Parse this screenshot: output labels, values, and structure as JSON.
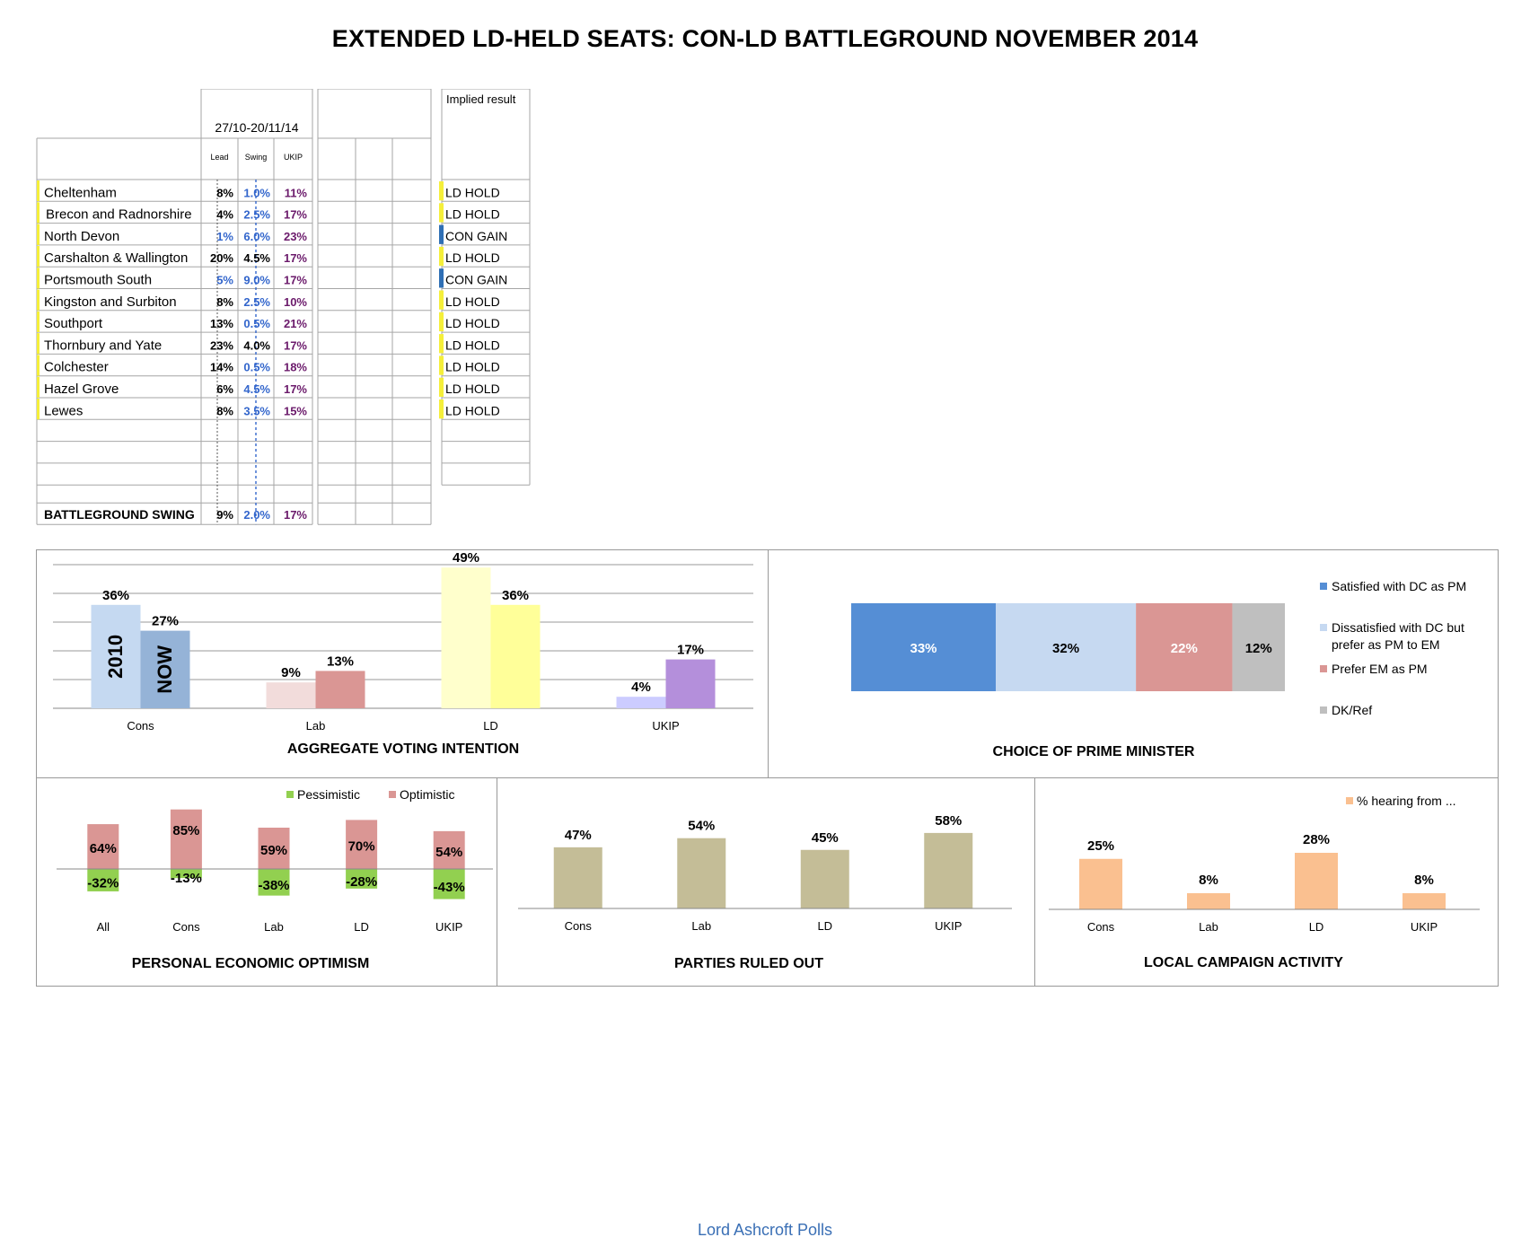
{
  "title": "EXTENDED LD-HELD SEATS: CON-LD BATTLEGROUND NOVEMBER 2014",
  "table": {
    "period": "27/10-20/11/14",
    "headers": {
      "lead": "Lead",
      "swing": "Swing",
      "ukip": "UKIP"
    },
    "implied_header": "Implied result",
    "rows": [
      {
        "seat": "Cheltenham",
        "lead": "8%",
        "swing": "1.0%",
        "ukip": "11%",
        "result": "LD HOLD",
        "lead_color": "#000000",
        "swing_color": "#3366cc",
        "marker": "#f5ef3a",
        "result_marker": "#f5ef3a"
      },
      {
        "seat": "Brecon and Radnorshire",
        "lead": "4%",
        "swing": "2.5%",
        "ukip": "17%",
        "result": "LD HOLD",
        "lead_color": "#000000",
        "swing_color": "#3366cc",
        "marker": "#f5ef3a",
        "result_marker": "#f5ef3a"
      },
      {
        "seat": "North Devon",
        "lead": "1%",
        "swing": "6.0%",
        "ukip": "23%",
        "result": "CON GAIN",
        "lead_color": "#3366cc",
        "swing_color": "#3366cc",
        "marker": "#f5ef3a",
        "result_marker": "#2f6fb5"
      },
      {
        "seat": "Carshalton & Wallington",
        "lead": "20%",
        "swing": "4.5%",
        "ukip": "17%",
        "result": "LD HOLD",
        "lead_color": "#000000",
        "swing_color": "#000000",
        "marker": "#f5ef3a",
        "result_marker": "#f5ef3a"
      },
      {
        "seat": "Portsmouth South",
        "lead": "5%",
        "swing": "9.0%",
        "ukip": "17%",
        "result": "CON GAIN",
        "lead_color": "#3366cc",
        "swing_color": "#3366cc",
        "marker": "#f5ef3a",
        "result_marker": "#2f6fb5"
      },
      {
        "seat": "Kingston and Surbiton",
        "lead": "8%",
        "swing": "2.5%",
        "ukip": "10%",
        "result": "LD HOLD",
        "lead_color": "#000000",
        "swing_color": "#3366cc",
        "marker": "#f5ef3a",
        "result_marker": "#f5ef3a"
      },
      {
        "seat": "Southport",
        "lead": "13%",
        "swing": "0.5%",
        "ukip": "21%",
        "result": "LD HOLD",
        "lead_color": "#000000",
        "swing_color": "#3366cc",
        "marker": "#f5ef3a",
        "result_marker": "#f5ef3a"
      },
      {
        "seat": "Thornbury and Yate",
        "lead": "23%",
        "swing": "4.0%",
        "ukip": "17%",
        "result": "LD HOLD",
        "lead_color": "#000000",
        "swing_color": "#000000",
        "marker": "#f5ef3a",
        "result_marker": "#f5ef3a"
      },
      {
        "seat": "Colchester",
        "lead": "14%",
        "swing": "0.5%",
        "ukip": "18%",
        "result": "LD HOLD",
        "lead_color": "#000000",
        "swing_color": "#3366cc",
        "marker": "#f5ef3a",
        "result_marker": "#f5ef3a"
      },
      {
        "seat": "Hazel Grove",
        "lead": "6%",
        "swing": "4.5%",
        "ukip": "17%",
        "result": "LD HOLD",
        "lead_color": "#000000",
        "swing_color": "#3366cc",
        "marker": "#f5ef3a",
        "result_marker": "#f5ef3a"
      },
      {
        "seat": "Lewes",
        "lead": "8%",
        "swing": "3.5%",
        "ukip": "15%",
        "result": "LD HOLD",
        "lead_color": "#000000",
        "swing_color": "#3366cc",
        "marker": "#f5ef3a",
        "result_marker": "#f5ef3a"
      }
    ],
    "summary": {
      "label": "BATTLEGROUND SWING",
      "lead": "9%",
      "swing": "2.0%",
      "ukip": "17%"
    },
    "ukip_color": "#6b1a6b"
  },
  "footer": "Lord Ashcroft Polls",
  "chart_data": [
    {
      "id": "voting",
      "type": "bar",
      "title": "AGGREGATE VOTING INTENTION",
      "categories": [
        "Cons",
        "Lab",
        "LD",
        "UKIP"
      ],
      "series": [
        {
          "name": "2010",
          "values": [
            36,
            9,
            49,
            4
          ],
          "colors": [
            "#c5d9f1",
            "#f2dcdb",
            "#ffffcc",
            "#ccccff"
          ],
          "labels": [
            "36%",
            "9%",
            "49%",
            "4%"
          ]
        },
        {
          "name": "NOW",
          "values": [
            27,
            13,
            36,
            17
          ],
          "colors": [
            "#95b3d7",
            "#da9694",
            "#ffff99",
            "#b48fdb"
          ],
          "labels": [
            "27%",
            "13%",
            "36%",
            "17%"
          ]
        }
      ],
      "ylim": [
        0,
        50
      ],
      "grid": true
    },
    {
      "id": "pm",
      "type": "bar",
      "title": "CHOICE OF PRIME MINISTER",
      "orientation": "stacked-horizontal",
      "segments": [
        {
          "name": "Satisfied with DC as PM",
          "value": 33,
          "label": "33%",
          "color": "#558ed5"
        },
        {
          "name": "Dissatisfied with DC but prefer as PM to EM",
          "value": 32,
          "label": "32%",
          "color": "#c6d9f1"
        },
        {
          "name": "Prefer EM as PM",
          "value": 22,
          "label": "22%",
          "color": "#da9694"
        },
        {
          "name": "DK/Ref",
          "value": 12,
          "label": "12%",
          "color": "#bfbfbf"
        }
      ],
      "legend": "right"
    },
    {
      "id": "optimism",
      "type": "bar",
      "title": "PERSONAL ECONOMIC OPTIMISM",
      "categories": [
        "All",
        "Cons",
        "Lab",
        "LD",
        "UKIP"
      ],
      "series": [
        {
          "name": "Pessimistic",
          "values": [
            -32,
            -13,
            -38,
            -28,
            -43
          ],
          "labels": [
            "-32%",
            "-13%",
            "-38%",
            "-28%",
            "-43%"
          ],
          "color": "#92d050"
        },
        {
          "name": "Optimistic",
          "values": [
            64,
            85,
            59,
            70,
            54
          ],
          "labels": [
            "64%",
            "85%",
            "59%",
            "70%",
            "54%"
          ],
          "color": "#da9694"
        }
      ],
      "legend": "top"
    },
    {
      "id": "ruledout",
      "type": "bar",
      "title": "PARTIES RULED OUT",
      "categories": [
        "Cons",
        "Lab",
        "LD",
        "UKIP"
      ],
      "values": [
        47,
        54,
        45,
        58
      ],
      "labels": [
        "47%",
        "54%",
        "45%",
        "58%"
      ],
      "color": "#c4bd97"
    },
    {
      "id": "campaign",
      "type": "bar",
      "title": "LOCAL CAMPAIGN ACTIVITY",
      "categories": [
        "Cons",
        "Lab",
        "LD",
        "UKIP"
      ],
      "series": [
        {
          "name": "% hearing from ...",
          "values": [
            25,
            8,
            28,
            8
          ],
          "labels": [
            "25%",
            "8%",
            "28%",
            "8%"
          ],
          "color": "#fac090"
        }
      ],
      "legend": "top-right"
    }
  ]
}
